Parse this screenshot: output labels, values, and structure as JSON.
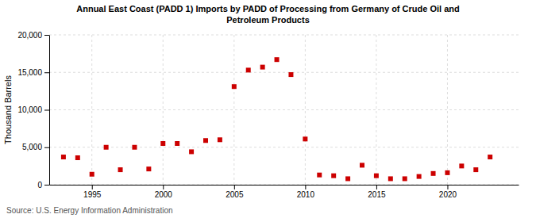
{
  "chart_data": {
    "type": "scatter",
    "title": "Annual East Coast (PADD 1) Imports by PADD of Processing from Germany of Crude Oil and\nPetroleum Products",
    "ylabel": "Thousand Barrels",
    "source": "Source: U.S. Energy Information Administration",
    "x": [
      1993,
      1994,
      1995,
      1996,
      1997,
      1998,
      1999,
      2000,
      2001,
      2002,
      2003,
      2004,
      2005,
      2006,
      2007,
      2008,
      2009,
      2010,
      2011,
      2012,
      2013,
      2014,
      2015,
      2016,
      2017,
      2018,
      2019,
      2020,
      2021,
      2022,
      2023
    ],
    "values": [
      3700,
      3600,
      1400,
      5000,
      2000,
      5000,
      2100,
      5500,
      5500,
      4400,
      5900,
      6000,
      13100,
      15300,
      15700,
      16700,
      14700,
      6100,
      1300,
      1200,
      800,
      2600,
      1200,
      800,
      800,
      1100,
      1500,
      1600,
      2500,
      2000,
      3700
    ],
    "color": "#cc0000",
    "marker": "square",
    "xlim": [
      1992,
      2025
    ],
    "xticks": [
      1995,
      2000,
      2005,
      2010,
      2015,
      2020
    ],
    "ylim": [
      0,
      20000
    ],
    "yticks": [
      0,
      {
        "value": 5000,
        "label": "5,000"
      },
      {
        "value": 10000,
        "label": "10,000"
      },
      {
        "value": 15000,
        "label": "15,000"
      },
      {
        "value": 20000,
        "label": "20,000"
      }
    ],
    "grid": true
  }
}
